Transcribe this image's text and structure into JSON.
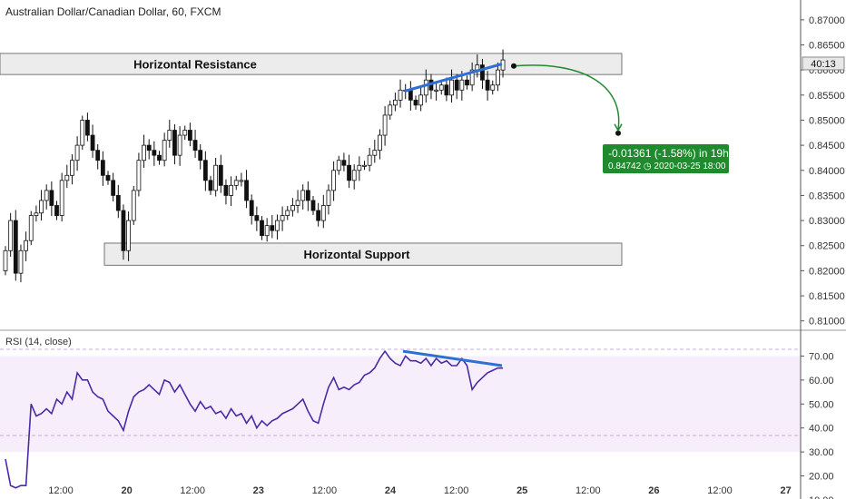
{
  "header": {
    "title": "Australian Dollar/Canadian Dollar, 60, FXCM"
  },
  "rsi_panel": {
    "label": "RSI (14, close)"
  },
  "annotations": {
    "resistance_label": "Horizontal Resistance",
    "support_label": "Horizontal Support",
    "projection_main": "-0.01361 (-1.58%) in 19h",
    "projection_sub": "0.84742 ◷ 2020-03-25  18:00",
    "countdown": "40:13"
  },
  "colors": {
    "trendline": "#2e6fd6",
    "rsi_line": "#4a2aa5",
    "rsi_band": "#f6effb",
    "projection": "#1f8a2e",
    "zone_fill": "#ececec",
    "zone_border": "#555555"
  },
  "chart_data": [
    {
      "type": "candlestick",
      "title": "Australian Dollar/Canadian Dollar, 60, FXCM",
      "x_ticks": [
        "12:00",
        "20",
        "12:00",
        "23",
        "12:00",
        "24",
        "12:00",
        "25",
        "12:00",
        "26",
        "12:00",
        "27"
      ],
      "y_ticks": [
        "0.87000",
        "0.86500",
        "0.86000",
        "0.85500",
        "0.85000",
        "0.84500",
        "0.84000",
        "0.83500",
        "0.83000",
        "0.82500",
        "0.82000",
        "0.81500",
        "0.81000"
      ],
      "ylim": [
        0.8085,
        0.8725
      ],
      "zones": [
        {
          "label": "Horizontal Resistance",
          "low": 0.8591,
          "high": 0.8633
        },
        {
          "label": "Horizontal Support",
          "low": 0.8211,
          "high": 0.8255
        }
      ],
      "current_price": 0.8613,
      "projection": {
        "from": 0.8608,
        "to": 0.84742,
        "change": "-0.01361 (-1.58%) in 19h",
        "date": "2020-03-25  18:00"
      },
      "close": [
        0.824,
        0.83,
        0.8195,
        0.824,
        0.826,
        0.831,
        0.8315,
        0.834,
        0.836,
        0.833,
        0.831,
        0.838,
        0.839,
        0.842,
        0.845,
        0.85,
        0.847,
        0.844,
        0.842,
        0.839,
        0.838,
        0.835,
        0.832,
        0.824,
        0.83,
        0.836,
        0.842,
        0.845,
        0.844,
        0.843,
        0.842,
        0.846,
        0.848,
        0.843,
        0.847,
        0.848,
        0.846,
        0.844,
        0.842,
        0.838,
        0.836,
        0.841,
        0.837,
        0.835,
        0.837,
        0.838,
        0.838,
        0.834,
        0.831,
        0.83,
        0.827,
        0.829,
        0.828,
        0.83,
        0.831,
        0.832,
        0.833,
        0.834,
        0.836,
        0.834,
        0.832,
        0.83,
        0.833,
        0.836,
        0.84,
        0.842,
        0.841,
        0.838,
        0.84,
        0.841,
        0.841,
        0.843,
        0.844,
        0.847,
        0.851,
        0.853,
        0.854,
        0.856,
        0.856,
        0.854,
        0.853,
        0.855,
        0.858,
        0.856,
        0.856,
        0.857,
        0.855,
        0.858,
        0.856,
        0.858,
        0.857,
        0.86,
        0.861,
        0.858,
        0.856,
        0.857,
        0.86,
        0.862
      ]
    },
    {
      "type": "line",
      "name": "RSI (14, close)",
      "y_ticks": [
        "70.00",
        "60.00",
        "50.00",
        "40.00",
        "30.00",
        "20.00",
        "10.00"
      ],
      "ylim": [
        10,
        80
      ],
      "band": [
        30,
        70
      ],
      "values": [
        27,
        16,
        15,
        16,
        16,
        50,
        45,
        46,
        48,
        46,
        52,
        50,
        55,
        52,
        63,
        60,
        60,
        55,
        53,
        52,
        47,
        45,
        43,
        39,
        47,
        53,
        55,
        56,
        58,
        56,
        54,
        60,
        59,
        55,
        58,
        54,
        50,
        47,
        51,
        48,
        49,
        46,
        47,
        44,
        48,
        45,
        46,
        42,
        45,
        40,
        43,
        41,
        43,
        44,
        46,
        47,
        48,
        50,
        52,
        47,
        43,
        42,
        50,
        57,
        61,
        56,
        57,
        56,
        58,
        59,
        62,
        63,
        65,
        69,
        72,
        69,
        67,
        66,
        70,
        68,
        68,
        67,
        69,
        66,
        69,
        67,
        68,
        66,
        66,
        69,
        66,
        56,
        59,
        61,
        63,
        64,
        65,
        65
      ],
      "divergence_rsi": [
        72,
        66
      ]
    }
  ]
}
